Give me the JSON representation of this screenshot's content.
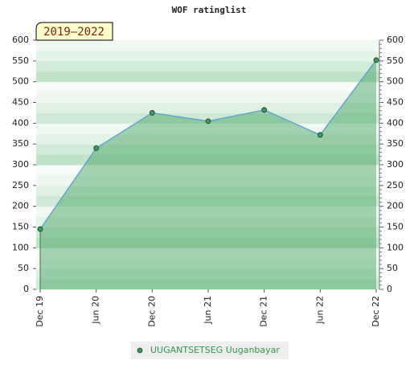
{
  "chart_data": {
    "type": "line",
    "title": "WOF ratinglist",
    "annotation": "2019–2022",
    "categories": [
      "Dec 19",
      "Jun 20",
      "Dec 20",
      "Jun 21",
      "Dec 21",
      "Jun 22",
      "Dec 22"
    ],
    "series": [
      {
        "name": "UUGANTSETSEG Uuganbayar",
        "color": "#5a9fd4",
        "marker_color": "#3c9a5a",
        "values": [
          145,
          340,
          425,
          405,
          432,
          372,
          552
        ]
      }
    ],
    "ylim": [
      0,
      600
    ],
    "yticks": [
      0,
      50,
      100,
      150,
      200,
      250,
      300,
      350,
      400,
      450,
      500,
      550,
      600
    ],
    "y2lim": [
      0,
      600
    ],
    "y2ticks": [
      0,
      50,
      100,
      150,
      200,
      250,
      300,
      350,
      400,
      450,
      500,
      550,
      600
    ]
  }
}
